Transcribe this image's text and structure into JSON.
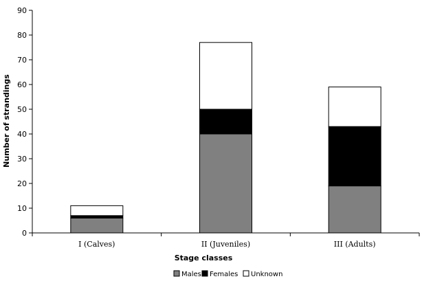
{
  "chart_data": {
    "type": "bar",
    "stacked": true,
    "categories": [
      "I (Calves)",
      "II (Juveniles)",
      "III (Adults)"
    ],
    "series": [
      {
        "name": "Males",
        "values": [
          6,
          40,
          19
        ],
        "color": "#808080"
      },
      {
        "name": "Females",
        "values": [
          1,
          10,
          24
        ],
        "color": "#000000"
      },
      {
        "name": "Unknown",
        "values": [
          4,
          27,
          16
        ],
        "color": "#ffffff"
      }
    ],
    "xlabel": "Stage classes",
    "ylabel": "Number of strandings",
    "ylim": [
      0,
      90
    ],
    "yticks": [
      0,
      10,
      20,
      30,
      40,
      50,
      60,
      70,
      80,
      90
    ],
    "grid": false,
    "legend_position": "bottom"
  }
}
